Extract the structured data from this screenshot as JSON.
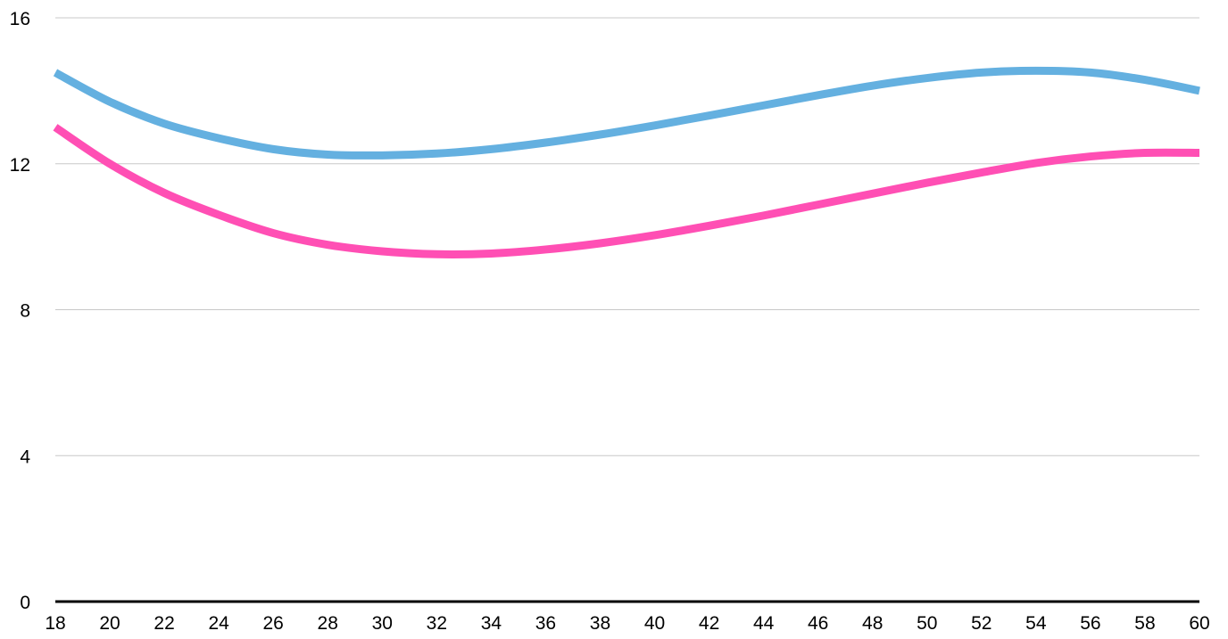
{
  "chart_data": {
    "type": "line",
    "title": "",
    "xlabel": "",
    "ylabel": "",
    "xlim": [
      18,
      60
    ],
    "ylim": [
      0,
      16
    ],
    "x_ticks": [
      18,
      20,
      22,
      24,
      26,
      28,
      30,
      32,
      34,
      36,
      38,
      40,
      42,
      44,
      46,
      48,
      50,
      52,
      54,
      56,
      58,
      60
    ],
    "y_ticks": [
      0,
      4,
      8,
      12,
      16
    ],
    "grid": "horizontal",
    "legend": "none",
    "x": [
      18,
      20,
      22,
      24,
      26,
      28,
      30,
      32,
      34,
      36,
      38,
      40,
      42,
      44,
      46,
      48,
      50,
      52,
      54,
      56,
      58,
      60
    ],
    "series": [
      {
        "color": "#64b0e0",
        "values": [
          14.5,
          13.7,
          13.1,
          12.7,
          12.4,
          12.25,
          12.23,
          12.28,
          12.4,
          12.58,
          12.8,
          13.05,
          13.32,
          13.6,
          13.88,
          14.14,
          14.35,
          14.5,
          14.55,
          14.5,
          14.3,
          14.0
        ]
      },
      {
        "color": "#ff4fb4",
        "values": [
          13.0,
          12.0,
          11.2,
          10.6,
          10.1,
          9.78,
          9.6,
          9.52,
          9.54,
          9.65,
          9.82,
          10.04,
          10.3,
          10.58,
          10.88,
          11.18,
          11.48,
          11.76,
          12.02,
          12.2,
          12.3,
          12.3
        ]
      }
    ]
  }
}
